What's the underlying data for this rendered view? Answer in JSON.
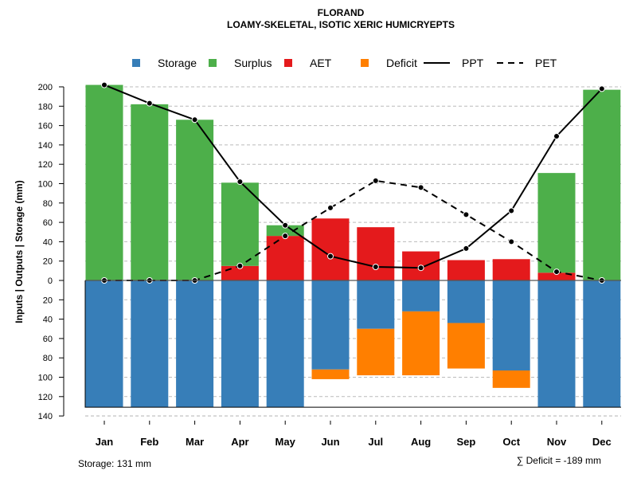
{
  "chart_data": {
    "type": "bar",
    "title": "FLORAND",
    "subtitle": "LOAMY-SKELETAL, ISOTIC XERIC HUMICRYEPTS",
    "ylabel": "Inputs | Outputs | Storage    (mm)",
    "ylim": [
      -140,
      210
    ],
    "yticks": [
      200,
      180,
      160,
      140,
      120,
      100,
      80,
      60,
      40,
      20,
      0,
      -20,
      -40,
      -60,
      -80,
      -100,
      -120,
      -140
    ],
    "categories": [
      "Jan",
      "Feb",
      "Mar",
      "Apr",
      "May",
      "Jun",
      "Jul",
      "Aug",
      "Sep",
      "Oct",
      "Nov",
      "Dec"
    ],
    "series": [
      {
        "name": "Storage",
        "color": "#377EB8",
        "values": [
          131,
          131,
          131,
          131,
          131,
          92,
          50,
          32,
          44,
          93,
          131,
          131
        ]
      },
      {
        "name": "Surplus",
        "color": "#4DAF4A",
        "values": [
          202,
          182,
          166,
          86,
          11,
          0,
          0,
          0,
          0,
          0,
          103,
          197
        ]
      },
      {
        "name": "AET",
        "color": "#E41A1C",
        "values": [
          0,
          0,
          0,
          15,
          46,
          64,
          55,
          30,
          21,
          22,
          8,
          0
        ]
      },
      {
        "name": "Deficit",
        "color": "#FF7F00",
        "values": [
          0,
          0,
          0,
          0,
          0,
          10,
          48,
          66,
          47,
          18,
          0,
          0
        ]
      },
      {
        "name": "PPT",
        "color": "#000000",
        "style": "solid",
        "values": [
          202,
          183,
          166,
          102,
          57,
          25,
          14,
          13,
          33,
          72,
          149,
          198
        ]
      },
      {
        "name": "PET",
        "color": "#000000",
        "style": "dashed",
        "values": [
          0,
          0,
          0,
          15,
          46,
          75,
          103,
          96,
          68,
          40,
          9,
          0
        ]
      }
    ],
    "legend_position": "top",
    "grid": true,
    "footer_left": "Storage: 131 mm",
    "footer_right": "∑ Deficit = -189 mm"
  }
}
